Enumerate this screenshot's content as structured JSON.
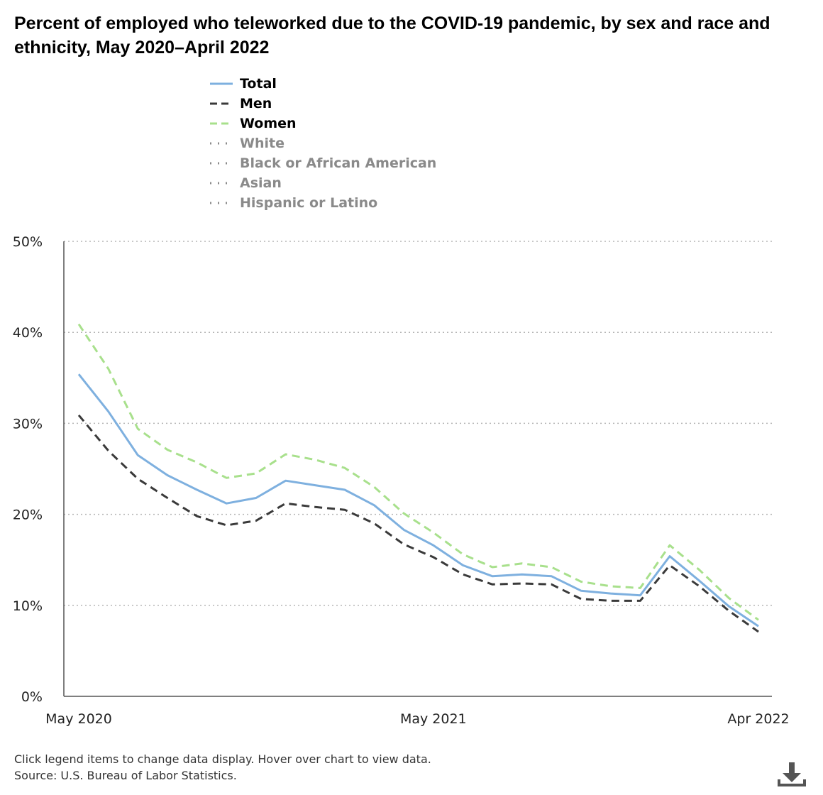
{
  "header": {
    "title": "Percent of employed who teleworked due to the COVID-19 pandemic, by sex and race and ethnicity, May 2020–April 2022"
  },
  "legend": {
    "items": [
      {
        "label": "Total",
        "active": true,
        "color": "#7eb0df",
        "style": "solid"
      },
      {
        "label": "Men",
        "active": true,
        "color": "#3a3a3a",
        "style": "dashed"
      },
      {
        "label": "Women",
        "active": true,
        "color": "#a8e08c",
        "style": "dashed"
      },
      {
        "label": "White",
        "active": false,
        "color": "#8a8a8a",
        "style": "dotted"
      },
      {
        "label": "Black or African American",
        "active": false,
        "color": "#8a8a8a",
        "style": "dotted"
      },
      {
        "label": "Asian",
        "active": false,
        "color": "#8a8a8a",
        "style": "dotted"
      },
      {
        "label": "Hispanic or Latino",
        "active": false,
        "color": "#8a8a8a",
        "style": "dotted"
      }
    ]
  },
  "footer": {
    "note": "Click legend items to change data display. Hover over chart to view data.",
    "source": "Source: U.S. Bureau of Labor Statistics."
  },
  "download": {
    "icon": "download-icon"
  },
  "chart_data": {
    "type": "line",
    "title": "Percent of employed who teleworked due to the COVID-19 pandemic, by sex and race and ethnicity, May 2020–April 2022",
    "xlabel": "",
    "ylabel": "",
    "x_ticks": [
      "May 2020",
      "May 2021",
      "Apr 2022"
    ],
    "x_tick_positions": [
      0,
      12,
      23
    ],
    "y_ticks": [
      "0%",
      "10%",
      "20%",
      "30%",
      "40%",
      "50%"
    ],
    "ylim": [
      0,
      50
    ],
    "grid": true,
    "legend_position": "top-left",
    "series": [
      {
        "name": "Total",
        "values": [
          35.4,
          31.3,
          26.5,
          24.3,
          22.7,
          21.2,
          21.8,
          23.7,
          23.2,
          22.7,
          21.0,
          18.3,
          16.6,
          14.4,
          13.2,
          13.4,
          13.2,
          11.6,
          11.3,
          11.1,
          15.4,
          12.7,
          9.9,
          7.7
        ]
      },
      {
        "name": "Men",
        "values": [
          30.9,
          27.0,
          23.9,
          21.8,
          19.8,
          18.8,
          19.3,
          21.2,
          20.8,
          20.5,
          19.0,
          16.7,
          15.3,
          13.4,
          12.3,
          12.4,
          12.3,
          10.7,
          10.5,
          10.5,
          14.4,
          12.1,
          9.4,
          7.1
        ]
      },
      {
        "name": "Women",
        "values": [
          40.9,
          36.0,
          29.4,
          27.1,
          25.7,
          24.0,
          24.5,
          26.6,
          26.0,
          25.1,
          23.0,
          20.1,
          18.0,
          15.6,
          14.2,
          14.6,
          14.2,
          12.6,
          12.1,
          11.9,
          16.6,
          13.9,
          10.8,
          8.4
        ]
      }
    ]
  }
}
